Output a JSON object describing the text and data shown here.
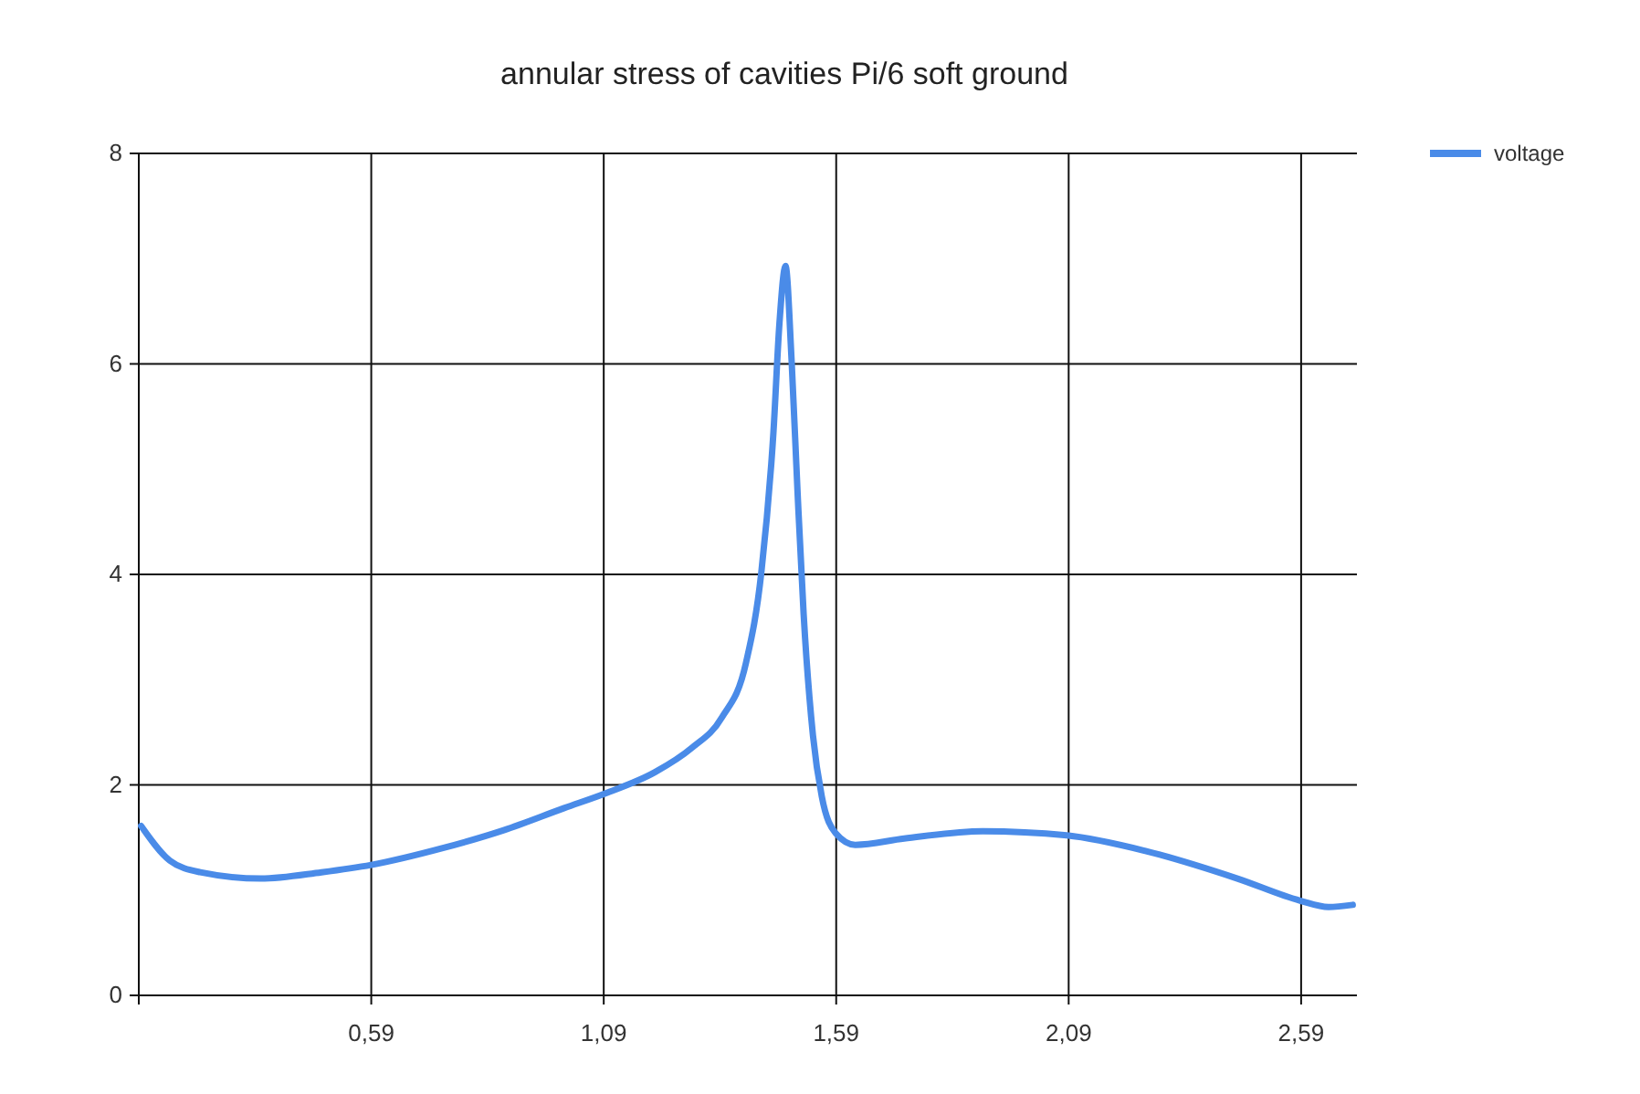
{
  "chart_data": {
    "type": "line",
    "title": "annular stress of cavities Pi/6 soft ground",
    "x": [
      0.095,
      0.157,
      0.222,
      0.352,
      0.483,
      0.59,
      0.744,
      0.875,
      1.005,
      1.094,
      1.2,
      1.279,
      1.344,
      1.396,
      1.429,
      1.455,
      1.468,
      1.481,
      1.494,
      1.507,
      1.52,
      1.54,
      1.559,
      1.589,
      1.631,
      1.736,
      1.905,
      2.086,
      2.257,
      2.453,
      2.588,
      2.649,
      2.701
    ],
    "series": [
      {
        "name": "voltage",
        "color": "#4a8be8",
        "values": [
          1.61,
          1.28,
          1.17,
          1.11,
          1.17,
          1.24,
          1.4,
          1.57,
          1.78,
          1.92,
          2.12,
          2.35,
          2.64,
          3.16,
          4.02,
          5.35,
          6.39,
          6.93,
          6.04,
          4.77,
          3.62,
          2.47,
          1.89,
          1.54,
          1.43,
          1.49,
          1.56,
          1.52,
          1.37,
          1.11,
          0.9,
          0.84,
          0.86
        ]
      }
    ],
    "xlim": [
      0.09,
      2.71
    ],
    "xticks": [
      {
        "value": 0.09,
        "label": null
      },
      {
        "value": 0.59,
        "label": "0,59"
      },
      {
        "value": 1.09,
        "label": "1,09"
      },
      {
        "value": 1.59,
        "label": "1,59"
      },
      {
        "value": 2.09,
        "label": "2,09"
      },
      {
        "value": 2.59,
        "label": "2,59"
      }
    ],
    "ylim": [
      0,
      8
    ],
    "yticks": [
      0,
      2,
      4,
      6,
      8
    ],
    "grid": true,
    "legend": "top right",
    "marker": "none",
    "line_style": "solid"
  }
}
